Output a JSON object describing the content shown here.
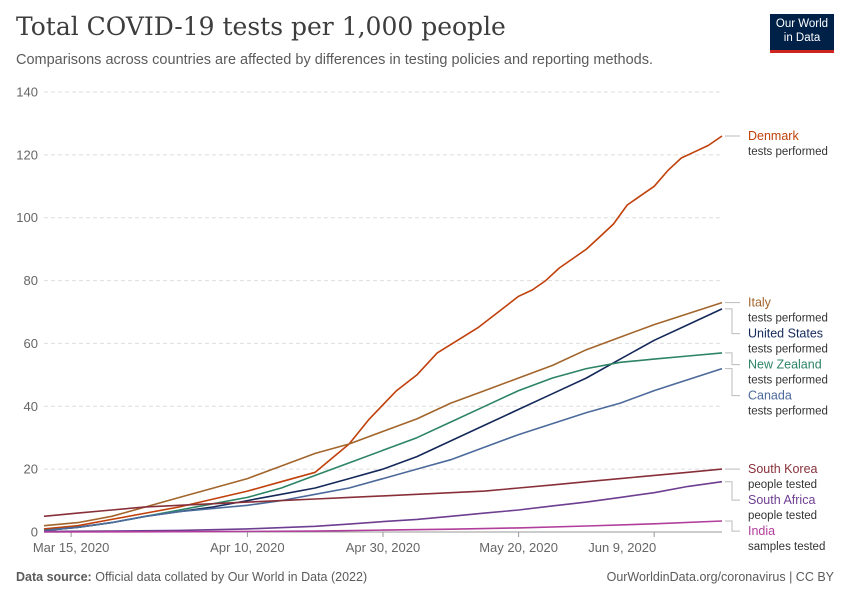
{
  "header": {
    "title": "Total COVID-19 tests per 1,000 people",
    "subtitle": "Comparisons across countries are affected by differences in testing policies and reporting methods."
  },
  "logo": {
    "line1": "Our World",
    "line2": "in Data"
  },
  "footer": {
    "source_label": "Data source:",
    "source_text": "Official data collated by Our World in Data (2022)",
    "right_text": "OurWorldinData.org/coronavirus | CC BY"
  },
  "chart_data": {
    "type": "line",
    "title": "Total COVID-19 tests per 1,000 people",
    "subtitle": "Comparisons across countries are affected by differences in testing policies and reporting methods.",
    "x_start": "2020-03-11",
    "x_end": "2020-06-09",
    "x_ticks": [
      {
        "day": 4,
        "label": "Mar 15, 2020"
      },
      {
        "day": 30,
        "label": "Apr 10, 2020"
      },
      {
        "day": 50,
        "label": "Apr 30, 2020"
      },
      {
        "day": 70,
        "label": "May 20, 2020"
      },
      {
        "day": 90,
        "label": "Jun 9, 2020"
      }
    ],
    "ylim": [
      0,
      140
    ],
    "y_ticks": [
      0,
      20,
      40,
      60,
      80,
      100,
      120,
      140
    ],
    "grid": true,
    "series": [
      {
        "name": "Denmark",
        "metric": "tests performed",
        "color": "#c0400b",
        "points": [
          [
            0,
            1
          ],
          [
            5,
            2
          ],
          [
            10,
            4
          ],
          [
            15,
            6
          ],
          [
            20,
            8
          ],
          [
            25,
            10.5
          ],
          [
            30,
            13
          ],
          [
            35,
            16
          ],
          [
            40,
            19
          ],
          [
            45,
            28
          ],
          [
            48,
            36
          ],
          [
            52,
            45
          ],
          [
            55,
            50
          ],
          [
            58,
            57
          ],
          [
            61,
            61
          ],
          [
            64,
            65
          ],
          [
            67,
            70
          ],
          [
            70,
            75
          ],
          [
            72,
            77
          ],
          [
            74,
            80
          ],
          [
            76,
            84
          ],
          [
            78,
            87
          ],
          [
            80,
            90
          ],
          [
            82,
            94
          ],
          [
            84,
            98
          ],
          [
            86,
            104
          ],
          [
            88,
            107
          ],
          [
            90,
            110
          ],
          [
            92,
            115
          ],
          [
            94,
            119
          ],
          [
            96,
            121
          ],
          [
            98,
            123
          ],
          [
            100,
            126
          ]
        ]
      },
      {
        "name": "Italy",
        "metric": "tests performed",
        "color": "#a2652c",
        "points": [
          [
            0,
            2
          ],
          [
            5,
            3
          ],
          [
            10,
            5
          ],
          [
            15,
            8
          ],
          [
            20,
            11
          ],
          [
            25,
            14
          ],
          [
            30,
            17
          ],
          [
            35,
            21
          ],
          [
            40,
            25
          ],
          [
            45,
            28
          ],
          [
            50,
            32
          ],
          [
            55,
            36
          ],
          [
            60,
            41
          ],
          [
            65,
            45
          ],
          [
            70,
            49
          ],
          [
            75,
            53
          ],
          [
            80,
            58
          ],
          [
            85,
            62
          ],
          [
            90,
            66
          ],
          [
            95,
            69.5
          ],
          [
            100,
            73
          ]
        ]
      },
      {
        "name": "United States",
        "metric": "tests performed",
        "color": "#14295a",
        "points": [
          [
            0,
            0.5
          ],
          [
            5,
            1.5
          ],
          [
            10,
            3
          ],
          [
            15,
            5
          ],
          [
            20,
            6.5
          ],
          [
            25,
            8
          ],
          [
            30,
            10
          ],
          [
            35,
            12
          ],
          [
            40,
            14
          ],
          [
            45,
            17
          ],
          [
            50,
            20
          ],
          [
            55,
            24
          ],
          [
            60,
            29
          ],
          [
            65,
            34
          ],
          [
            70,
            39
          ],
          [
            75,
            44
          ],
          [
            80,
            49
          ],
          [
            85,
            55
          ],
          [
            90,
            61
          ],
          [
            95,
            66
          ],
          [
            100,
            71
          ]
        ]
      },
      {
        "name": "New Zealand",
        "metric": "tests performed",
        "color": "#2c8465",
        "points": [
          [
            0,
            0.5
          ],
          [
            5,
            1.5
          ],
          [
            10,
            3
          ],
          [
            15,
            5
          ],
          [
            20,
            7
          ],
          [
            25,
            9
          ],
          [
            30,
            11
          ],
          [
            35,
            14
          ],
          [
            40,
            18
          ],
          [
            45,
            22
          ],
          [
            50,
            26
          ],
          [
            55,
            30
          ],
          [
            60,
            35
          ],
          [
            65,
            40
          ],
          [
            70,
            45
          ],
          [
            75,
            49
          ],
          [
            80,
            52
          ],
          [
            85,
            54
          ],
          [
            90,
            55
          ],
          [
            95,
            56
          ],
          [
            100,
            57
          ]
        ]
      },
      {
        "name": "Canada",
        "metric": "tests performed",
        "color": "#4b6a9b",
        "points": [
          [
            0,
            0.5
          ],
          [
            5,
            1.5
          ],
          [
            10,
            3
          ],
          [
            15,
            5
          ],
          [
            20,
            6.5
          ],
          [
            25,
            7.5
          ],
          [
            30,
            8.5
          ],
          [
            35,
            10
          ],
          [
            40,
            12
          ],
          [
            45,
            14
          ],
          [
            50,
            17
          ],
          [
            55,
            20
          ],
          [
            60,
            23
          ],
          [
            65,
            27
          ],
          [
            70,
            31
          ],
          [
            75,
            34.5
          ],
          [
            80,
            38
          ],
          [
            85,
            41
          ],
          [
            90,
            45
          ],
          [
            95,
            48.5
          ],
          [
            100,
            52
          ]
        ]
      },
      {
        "name": "South Korea",
        "metric": "people tested",
        "color": "#883039",
        "points": [
          [
            0,
            5
          ],
          [
            5,
            6
          ],
          [
            10,
            7
          ],
          [
            15,
            8
          ],
          [
            20,
            8.5
          ],
          [
            25,
            9
          ],
          [
            30,
            9.5
          ],
          [
            35,
            10
          ],
          [
            40,
            10.5
          ],
          [
            45,
            11
          ],
          [
            50,
            11.5
          ],
          [
            55,
            12
          ],
          [
            60,
            12.5
          ],
          [
            65,
            13
          ],
          [
            70,
            14
          ],
          [
            75,
            15
          ],
          [
            80,
            16
          ],
          [
            85,
            17
          ],
          [
            90,
            18
          ],
          [
            95,
            19
          ],
          [
            100,
            20
          ]
        ]
      },
      {
        "name": "South Africa",
        "metric": "people tested",
        "color": "#6d3e91",
        "points": [
          [
            0,
            0.2
          ],
          [
            10,
            0.3
          ],
          [
            20,
            0.5
          ],
          [
            30,
            1
          ],
          [
            40,
            1.8
          ],
          [
            45,
            2.5
          ],
          [
            50,
            3.3
          ],
          [
            55,
            4
          ],
          [
            60,
            5
          ],
          [
            65,
            6
          ],
          [
            70,
            7
          ],
          [
            75,
            8.3
          ],
          [
            80,
            9.5
          ],
          [
            85,
            11
          ],
          [
            90,
            12.5
          ],
          [
            95,
            14.5
          ],
          [
            100,
            16
          ]
        ]
      },
      {
        "name": "India",
        "metric": "samples tested",
        "color": "#b13e9b",
        "points": [
          [
            0,
            0
          ],
          [
            20,
            0.1
          ],
          [
            40,
            0.3
          ],
          [
            50,
            0.6
          ],
          [
            60,
            0.9
          ],
          [
            70,
            1.3
          ],
          [
            80,
            1.9
          ],
          [
            90,
            2.6
          ],
          [
            100,
            3.5
          ]
        ]
      }
    ]
  }
}
